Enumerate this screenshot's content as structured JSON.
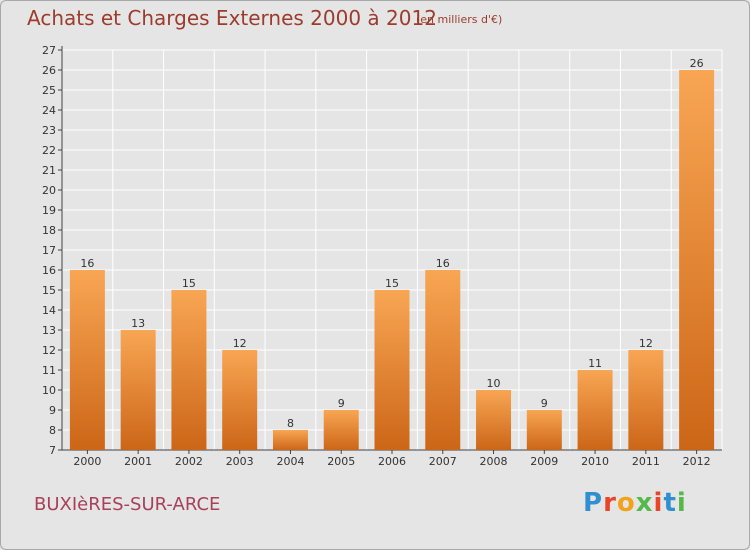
{
  "header": {
    "title": "Achats et Charges Externes 2000 à 2012",
    "subtitle": "(en milliers d'€)"
  },
  "footer": {
    "commune": "BUXIèRES-SUR-ARCE",
    "logo": "Proxiti",
    "logo_colors": [
      "#2f8fd0",
      "#e8462b",
      "#f1a31a",
      "#54b948",
      "#e8462b",
      "#2f8fd0",
      "#54b948"
    ]
  },
  "colors": {
    "bar_light": "#f8a654",
    "bar_dark": "#cc6617",
    "grid": "#ffffff",
    "axis": "#444444",
    "background": "#e5e5e5"
  },
  "chart_data": {
    "type": "bar",
    "title": "Achats et Charges Externes 2000 à 2012",
    "subtitle": "(en milliers d'€)",
    "xlabel": "",
    "ylabel": "",
    "categories": [
      "2000",
      "2001",
      "2002",
      "2003",
      "2004",
      "2005",
      "2006",
      "2007",
      "2008",
      "2009",
      "2010",
      "2011",
      "2012"
    ],
    "values": [
      16,
      13,
      15,
      12,
      8,
      9,
      15,
      16,
      10,
      9,
      11,
      12,
      26
    ],
    "ylim": [
      7,
      27
    ],
    "yticks": [
      7,
      8,
      9,
      10,
      11,
      12,
      13,
      14,
      15,
      16,
      17,
      18,
      19,
      20,
      21,
      22,
      23,
      24,
      25,
      26,
      27
    ],
    "grid": true,
    "data_labels": true
  }
}
